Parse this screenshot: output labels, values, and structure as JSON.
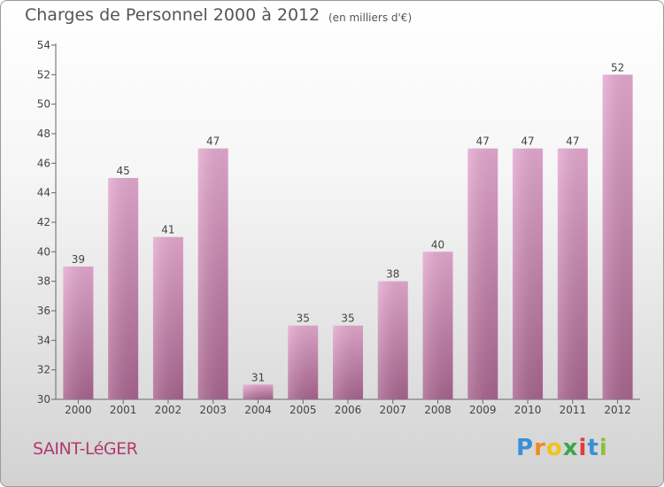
{
  "header": {
    "title": "Charges de Personnel 2000 à 2012",
    "subtitle": "(en milliers d'€)"
  },
  "footer": {
    "commune": "SAINT-LéGER",
    "logo_letters": [
      "P",
      "r",
      "o",
      "x",
      "i",
      "t",
      "i"
    ],
    "logo_colors": [
      "#3b8fd6",
      "#f08a1d",
      "#f2c21b",
      "#3ca64b",
      "#e23b3b",
      "#3b8fd6",
      "#8fbf3a"
    ]
  },
  "colors": {
    "bar_top": "#e4a9cf",
    "bar_bottom": "#a8648e",
    "value_label": "#444444",
    "tick_label": "#444444"
  },
  "chart_data": {
    "type": "bar",
    "title": "Charges de Personnel 2000 à 2012",
    "subtitle": "(en milliers d'€)",
    "categories": [
      "2000",
      "2001",
      "2002",
      "2003",
      "2004",
      "2005",
      "2006",
      "2007",
      "2008",
      "2009",
      "2010",
      "2011",
      "2012"
    ],
    "values": [
      39,
      45,
      41,
      47,
      31,
      35,
      35,
      38,
      40,
      47,
      47,
      47,
      52
    ],
    "ylim": [
      30,
      54
    ],
    "yticks": [
      30,
      32,
      34,
      36,
      38,
      40,
      42,
      44,
      46,
      48,
      50,
      52,
      54
    ],
    "grid": false,
    "legend": "none"
  }
}
